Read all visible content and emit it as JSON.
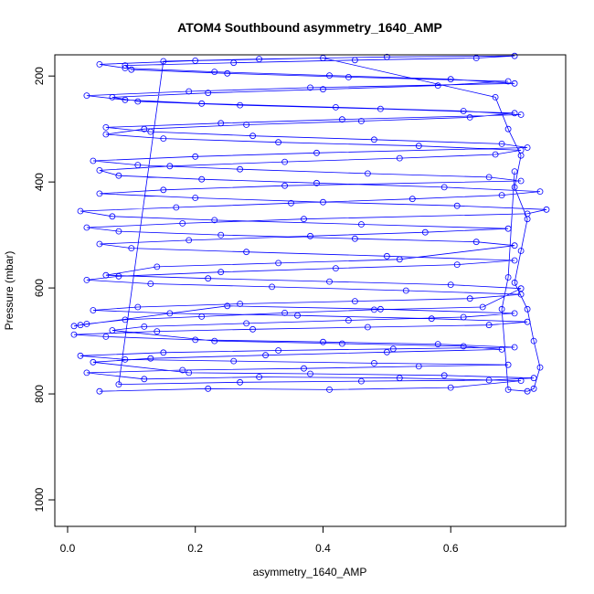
{
  "chart_data": {
    "type": "scatter",
    "title": "ATOM4 Southbound asymmetry_1640_AMP",
    "xlabel": "asymmetry_1640_AMP",
    "ylabel": "Pressure (mbar)",
    "xlim": [
      -0.02,
      0.78
    ],
    "ylim": [
      1050,
      160
    ],
    "y_reversed": true,
    "x_ticks": [
      0.0,
      0.2,
      0.4,
      0.6
    ],
    "x_tick_labels": [
      "0.0",
      "0.2",
      "0.4",
      "0.6"
    ],
    "y_ticks": [
      200,
      400,
      600,
      800,
      1000
    ],
    "y_tick_labels": [
      "200",
      "400",
      "600",
      "800",
      "1000"
    ],
    "grid": false,
    "legend": "none",
    "series": [
      {
        "color": "#0000ff",
        "marker": "open-circle",
        "line": true,
        "points": [
          [
            0.05,
            795
          ],
          [
            0.22,
            790
          ],
          [
            0.41,
            792
          ],
          [
            0.6,
            788
          ],
          [
            0.71,
            775
          ],
          [
            0.52,
            770
          ],
          [
            0.3,
            768
          ],
          [
            0.12,
            772
          ],
          [
            0.03,
            760
          ],
          [
            0.18,
            755
          ],
          [
            0.37,
            752
          ],
          [
            0.55,
            748
          ],
          [
            0.69,
            745
          ],
          [
            0.48,
            742
          ],
          [
            0.26,
            738
          ],
          [
            0.09,
            735
          ],
          [
            0.02,
            728
          ],
          [
            0.15,
            722
          ],
          [
            0.33,
            718
          ],
          [
            0.51,
            715
          ],
          [
            0.7,
            712
          ],
          [
            0.58,
            706
          ],
          [
            0.4,
            702
          ],
          [
            0.2,
            698
          ],
          [
            0.06,
            692
          ],
          [
            0.01,
            688
          ],
          [
            0.14,
            682
          ],
          [
            0.29,
            678
          ],
          [
            0.47,
            674
          ],
          [
            0.66,
            670
          ],
          [
            0.72,
            664
          ],
          [
            0.57,
            658
          ],
          [
            0.36,
            652
          ],
          [
            0.16,
            648
          ],
          [
            0.04,
            642
          ],
          [
            0.11,
            636
          ],
          [
            0.27,
            630
          ],
          [
            0.45,
            625
          ],
          [
            0.63,
            620
          ],
          [
            0.71,
            612
          ],
          [
            0.53,
            605
          ],
          [
            0.32,
            598
          ],
          [
            0.13,
            592
          ],
          [
            0.03,
            585
          ],
          [
            0.08,
            578
          ],
          [
            0.24,
            570
          ],
          [
            0.42,
            563
          ],
          [
            0.61,
            556
          ],
          [
            0.7,
            548
          ],
          [
            0.5,
            540
          ],
          [
            0.28,
            532
          ],
          [
            0.1,
            525
          ],
          [
            0.05,
            517
          ],
          [
            0.19,
            510
          ],
          [
            0.38,
            502
          ],
          [
            0.56,
            495
          ],
          [
            0.69,
            488
          ],
          [
            0.46,
            480
          ],
          [
            0.23,
            472
          ],
          [
            0.07,
            465
          ],
          [
            0.02,
            455
          ],
          [
            0.17,
            448
          ],
          [
            0.35,
            440
          ],
          [
            0.54,
            432
          ],
          [
            0.68,
            425
          ],
          [
            0.74,
            418
          ],
          [
            0.59,
            410
          ],
          [
            0.39,
            402
          ],
          [
            0.21,
            395
          ],
          [
            0.08,
            388
          ],
          [
            0.05,
            378
          ],
          [
            0.16,
            370
          ],
          [
            0.34,
            362
          ],
          [
            0.52,
            355
          ],
          [
            0.67,
            348
          ],
          [
            0.71,
            340
          ],
          [
            0.55,
            332
          ],
          [
            0.33,
            325
          ],
          [
            0.15,
            318
          ],
          [
            0.06,
            310
          ],
          [
            0.12,
            300
          ],
          [
            0.28,
            292
          ],
          [
            0.46,
            285
          ],
          [
            0.63,
            278
          ],
          [
            0.7,
            270
          ],
          [
            0.49,
            262
          ],
          [
            0.27,
            255
          ],
          [
            0.11,
            248
          ],
          [
            0.07,
            240
          ],
          [
            0.22,
            232
          ],
          [
            0.4,
            225
          ],
          [
            0.58,
            218
          ],
          [
            0.69,
            210
          ],
          [
            0.44,
            202
          ],
          [
            0.25,
            195
          ],
          [
            0.1,
            188
          ],
          [
            0.09,
            180
          ],
          [
            0.26,
            175
          ],
          [
            0.45,
            170
          ],
          [
            0.64,
            166
          ],
          [
            0.7,
            162
          ],
          [
            0.5,
            164
          ],
          [
            0.3,
            168
          ],
          [
            0.15,
            172
          ],
          [
            0.08,
            782
          ],
          [
            0.27,
            778
          ],
          [
            0.46,
            776
          ],
          [
            0.66,
            774
          ],
          [
            0.73,
            770
          ],
          [
            0.59,
            765
          ],
          [
            0.38,
            762
          ],
          [
            0.19,
            760
          ],
          [
            0.04,
            740
          ],
          [
            0.13,
            733
          ],
          [
            0.31,
            727
          ],
          [
            0.5,
            721
          ],
          [
            0.68,
            716
          ],
          [
            0.62,
            710
          ],
          [
            0.43,
            705
          ],
          [
            0.23,
            700
          ],
          [
            0.07,
            680
          ],
          [
            0.12,
            673
          ],
          [
            0.28,
            667
          ],
          [
            0.44,
            661
          ],
          [
            0.62,
            655
          ],
          [
            0.7,
            648
          ],
          [
            0.49,
            640
          ],
          [
            0.25,
            634
          ],
          [
            0.02,
            670
          ],
          [
            0.01,
            672
          ],
          [
            0.03,
            668
          ],
          [
            0.09,
            660
          ],
          [
            0.21,
            654
          ],
          [
            0.34,
            647
          ],
          [
            0.48,
            641
          ],
          [
            0.65,
            636
          ],
          [
            0.71,
            601
          ],
          [
            0.6,
            594
          ],
          [
            0.41,
            588
          ],
          [
            0.22,
            582
          ],
          [
            0.06,
            576
          ],
          [
            0.14,
            560
          ],
          [
            0.33,
            553
          ],
          [
            0.52,
            546
          ],
          [
            0.7,
            520
          ],
          [
            0.64,
            513
          ],
          [
            0.45,
            507
          ],
          [
            0.24,
            500
          ],
          [
            0.08,
            493
          ],
          [
            0.03,
            486
          ],
          [
            0.18,
            478
          ],
          [
            0.37,
            470
          ],
          [
            0.72,
            460
          ],
          [
            0.75,
            452
          ],
          [
            0.61,
            445
          ],
          [
            0.4,
            438
          ],
          [
            0.2,
            430
          ],
          [
            0.05,
            422
          ],
          [
            0.15,
            415
          ],
          [
            0.34,
            407
          ],
          [
            0.71,
            398
          ],
          [
            0.66,
            391
          ],
          [
            0.47,
            384
          ],
          [
            0.27,
            376
          ],
          [
            0.11,
            368
          ],
          [
            0.04,
            360
          ],
          [
            0.2,
            352
          ],
          [
            0.39,
            345
          ],
          [
            0.72,
            335
          ],
          [
            0.68,
            328
          ],
          [
            0.48,
            320
          ],
          [
            0.29,
            313
          ],
          [
            0.13,
            305
          ],
          [
            0.06,
            297
          ],
          [
            0.24,
            289
          ],
          [
            0.43,
            282
          ],
          [
            0.71,
            273
          ],
          [
            0.62,
            266
          ],
          [
            0.42,
            259
          ],
          [
            0.21,
            252
          ],
          [
            0.09,
            245
          ],
          [
            0.03,
            237
          ],
          [
            0.19,
            229
          ],
          [
            0.38,
            222
          ],
          [
            0.7,
            214
          ],
          [
            0.6,
            206
          ],
          [
            0.41,
            199
          ],
          [
            0.23,
            192
          ],
          [
            0.09,
            185
          ],
          [
            0.05,
            178
          ],
          [
            0.2,
            171
          ],
          [
            0.4,
            166
          ],
          [
            0.67,
            240
          ],
          [
            0.69,
            300
          ],
          [
            0.71,
            350
          ],
          [
            0.7,
            410
          ],
          [
            0.72,
            470
          ],
          [
            0.71,
            530
          ],
          [
            0.7,
            590
          ],
          [
            0.72,
            640
          ],
          [
            0.73,
            700
          ],
          [
            0.74,
            750
          ],
          [
            0.73,
            790
          ],
          [
            0.72,
            795
          ],
          [
            0.69,
            792
          ],
          [
            0.68,
            640
          ],
          [
            0.69,
            580
          ],
          [
            0.7,
            380
          ]
        ]
      }
    ]
  }
}
